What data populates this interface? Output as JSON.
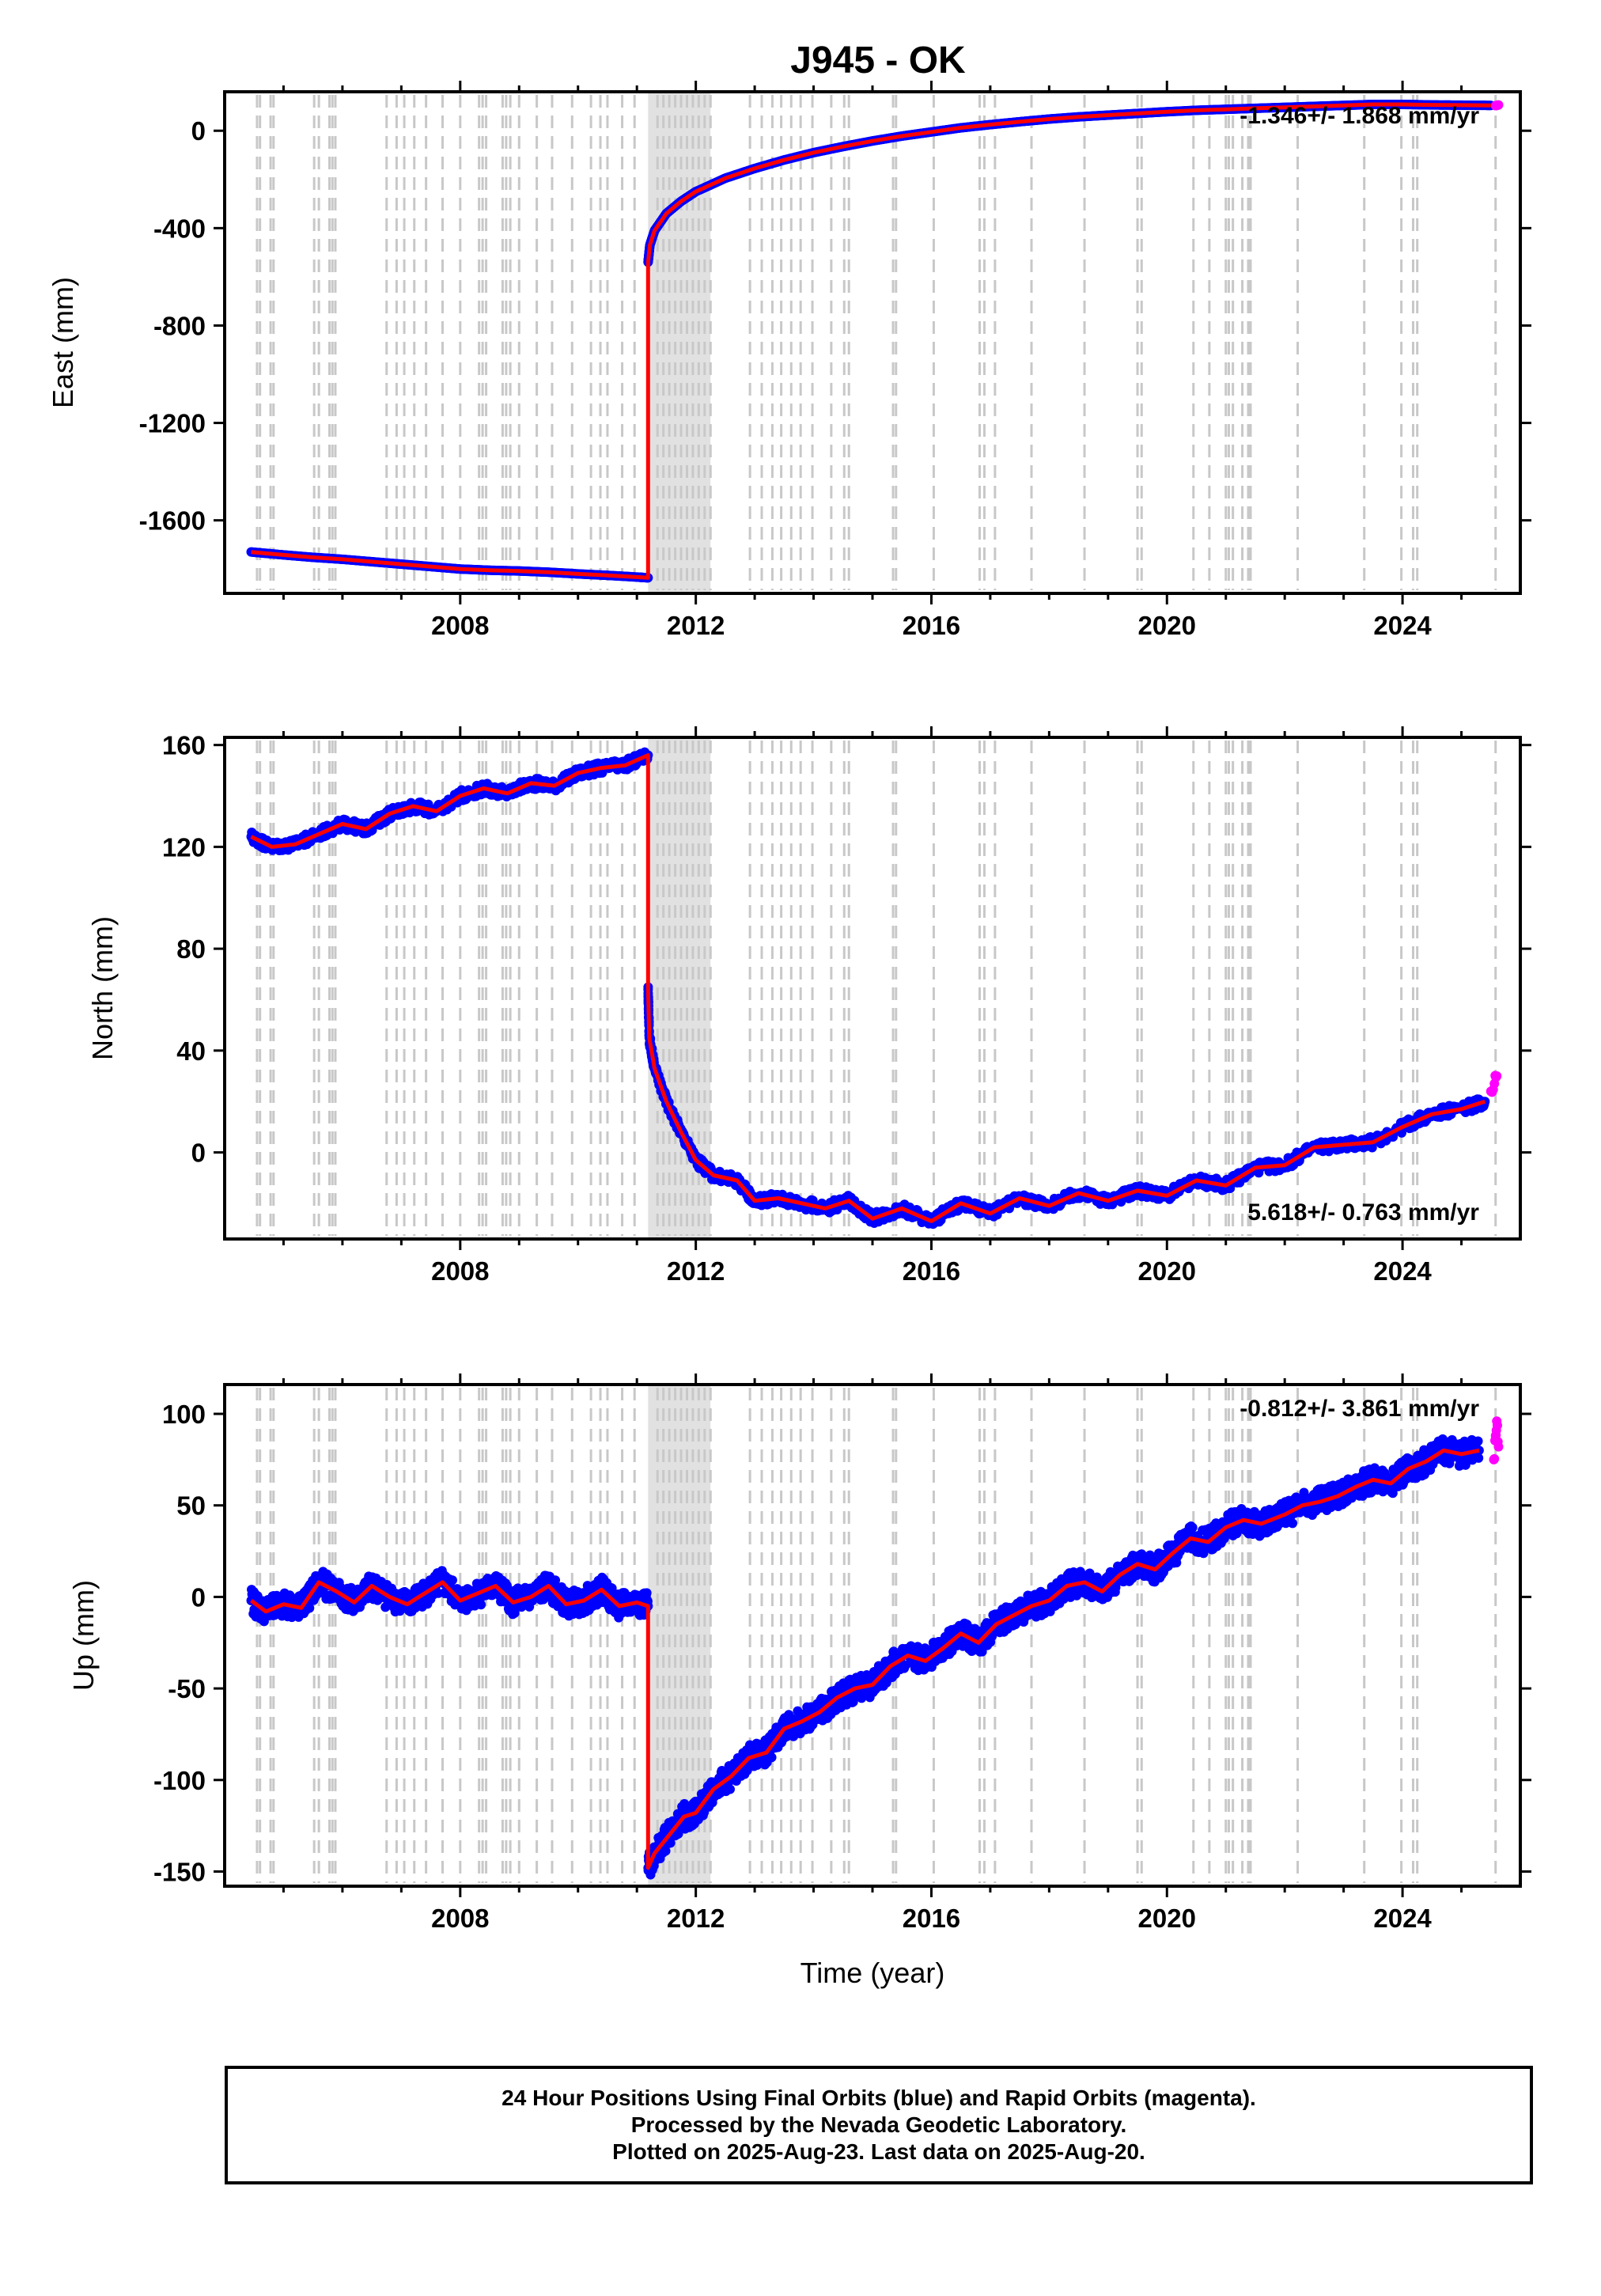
{
  "page": {
    "title": "J945 - OK"
  },
  "footer": {
    "line1": "24 Hour Positions Using Final Orbits (blue) and Rapid Orbits (magenta).",
    "line2": "Processed by the Nevada Geodetic Laboratory.",
    "line3": "Plotted on 2025-Aug-23. Last data on 2025-Aug-20."
  },
  "colors": {
    "final": "#0000ff",
    "rapid": "#ff00ff",
    "model": "#ff0000",
    "steps": "#c8c8c8"
  },
  "chart_data": [
    {
      "type": "scatter",
      "title": "J945 - OK",
      "xlabel": "",
      "ylabel": "East (mm)",
      "xlim": [
        2004.0,
        2026.0
      ],
      "ylim": [
        -1900,
        160
      ],
      "xticks": [
        "2008",
        "2012",
        "2016",
        "2020",
        "2024"
      ],
      "yticks": [
        "0",
        "-400",
        "-800",
        "-1200",
        "-1600"
      ],
      "rate_text": "-1.346+/- 1.868 mm/yr",
      "series": [
        {
          "kind": "final",
          "points": [
            [
              2004.45,
              -1730
            ],
            [
              2005.0,
              -1742
            ],
            [
              2005.5,
              -1752
            ],
            [
              2006.0,
              -1760
            ],
            [
              2006.5,
              -1770
            ],
            [
              2007.0,
              -1780
            ],
            [
              2007.5,
              -1790
            ],
            [
              2008.0,
              -1800
            ],
            [
              2008.5,
              -1805
            ],
            [
              2009.0,
              -1808
            ],
            [
              2009.5,
              -1813
            ],
            [
              2010.0,
              -1820
            ],
            [
              2010.5,
              -1826
            ],
            [
              2011.0,
              -1833
            ],
            [
              2011.19,
              -1836
            ],
            [
              2011.19,
              -540
            ],
            [
              2011.22,
              -470
            ],
            [
              2011.3,
              -410
            ],
            [
              2011.5,
              -340
            ],
            [
              2011.75,
              -290
            ],
            [
              2012.0,
              -250
            ],
            [
              2012.5,
              -195
            ],
            [
              2013.0,
              -155
            ],
            [
              2013.5,
              -120
            ],
            [
              2014.0,
              -90
            ],
            [
              2014.5,
              -65
            ],
            [
              2015.0,
              -42
            ],
            [
              2015.5,
              -22
            ],
            [
              2016.0,
              -5
            ],
            [
              2016.5,
              12
            ],
            [
              2017.0,
              25
            ],
            [
              2017.5,
              37
            ],
            [
              2018.0,
              48
            ],
            [
              2018.5,
              57
            ],
            [
              2019.0,
              64
            ],
            [
              2019.5,
              71
            ],
            [
              2020.0,
              78
            ],
            [
              2020.5,
              84
            ],
            [
              2021.0,
              88
            ],
            [
              2021.5,
              92
            ],
            [
              2022.0,
              96
            ],
            [
              2022.5,
              100
            ],
            [
              2023.0,
              104
            ],
            [
              2023.5,
              108
            ],
            [
              2024.0,
              108
            ],
            [
              2024.5,
              106
            ],
            [
              2025.0,
              105
            ],
            [
              2025.5,
              104
            ]
          ]
        },
        {
          "kind": "rapid",
          "points": [
            [
              2025.58,
              103
            ],
            [
              2025.6,
              104
            ],
            [
              2025.63,
              106
            ]
          ]
        }
      ]
    },
    {
      "type": "scatter",
      "title": "",
      "xlabel": "",
      "ylabel": "North (mm)",
      "xlim": [
        2004.0,
        2026.0
      ],
      "ylim": [
        -34,
        163
      ],
      "xticks": [
        "2008",
        "2012",
        "2016",
        "2020",
        "2024"
      ],
      "yticks": [
        "160",
        "120",
        "80",
        "40",
        "0"
      ],
      "rate_text": "5.618+/- 0.763 mm/yr",
      "series": [
        {
          "kind": "final",
          "points": [
            [
              2004.45,
              124
            ],
            [
              2004.8,
              120
            ],
            [
              2005.2,
              121
            ],
            [
              2005.6,
              125
            ],
            [
              2006.0,
              129
            ],
            [
              2006.4,
              127
            ],
            [
              2006.8,
              133
            ],
            [
              2007.2,
              136
            ],
            [
              2007.6,
              134
            ],
            [
              2008.0,
              140
            ],
            [
              2008.4,
              143
            ],
            [
              2008.8,
              141
            ],
            [
              2009.2,
              145
            ],
            [
              2009.6,
              144
            ],
            [
              2010.0,
              149
            ],
            [
              2010.4,
              151
            ],
            [
              2010.8,
              152
            ],
            [
              2011.19,
              156
            ],
            [
              2011.19,
              64
            ],
            [
              2011.21,
              45
            ],
            [
              2011.3,
              33
            ],
            [
              2011.5,
              20
            ],
            [
              2011.75,
              8
            ],
            [
              2012.0,
              -3
            ],
            [
              2012.3,
              -9
            ],
            [
              2012.7,
              -11
            ],
            [
              2013.0,
              -19
            ],
            [
              2013.4,
              -18
            ],
            [
              2013.8,
              -20
            ],
            [
              2014.2,
              -22
            ],
            [
              2014.6,
              -19
            ],
            [
              2015.0,
              -26
            ],
            [
              2015.5,
              -22
            ],
            [
              2016.0,
              -27
            ],
            [
              2016.5,
              -20
            ],
            [
              2017.0,
              -24
            ],
            [
              2017.5,
              -18
            ],
            [
              2018.0,
              -21
            ],
            [
              2018.5,
              -16
            ],
            [
              2019.0,
              -19
            ],
            [
              2019.5,
              -15
            ],
            [
              2020.0,
              -17
            ],
            [
              2020.5,
              -11
            ],
            [
              2021.0,
              -13
            ],
            [
              2021.5,
              -6
            ],
            [
              2022.0,
              -5
            ],
            [
              2022.5,
              2
            ],
            [
              2023.0,
              3
            ],
            [
              2023.5,
              4
            ],
            [
              2024.0,
              10
            ],
            [
              2024.5,
              15
            ],
            [
              2025.0,
              17
            ],
            [
              2025.4,
              20
            ]
          ]
        },
        {
          "kind": "rapid",
          "points": [
            [
              2025.5,
              24
            ],
            [
              2025.56,
              27
            ],
            [
              2025.6,
              30
            ]
          ]
        }
      ]
    },
    {
      "type": "scatter",
      "title": "",
      "xlabel": "Time (year)",
      "ylabel": "Up (mm)",
      "xlim": [
        2004.0,
        2026.0
      ],
      "ylim": [
        -158,
        116
      ],
      "xticks": [
        "2008",
        "2012",
        "2016",
        "2020",
        "2024"
      ],
      "yticks": [
        "100",
        "50",
        "0",
        "-50",
        "-100",
        "-150"
      ],
      "rate_text": "-0.812+/- 3.861 mm/yr",
      "series": [
        {
          "kind": "final",
          "points": [
            [
              2004.45,
              -2
            ],
            [
              2004.7,
              -8
            ],
            [
              2005.0,
              -4
            ],
            [
              2005.3,
              -6
            ],
            [
              2005.6,
              8
            ],
            [
              2005.9,
              3
            ],
            [
              2006.2,
              -3
            ],
            [
              2006.5,
              6
            ],
            [
              2006.8,
              0
            ],
            [
              2007.1,
              -4
            ],
            [
              2007.4,
              2
            ],
            [
              2007.7,
              8
            ],
            [
              2008.0,
              -2
            ],
            [
              2008.3,
              2
            ],
            [
              2008.6,
              6
            ],
            [
              2008.9,
              -3
            ],
            [
              2009.2,
              0
            ],
            [
              2009.5,
              6
            ],
            [
              2009.8,
              -4
            ],
            [
              2010.1,
              -2
            ],
            [
              2010.4,
              4
            ],
            [
              2010.7,
              -5
            ],
            [
              2011.0,
              -3
            ],
            [
              2011.19,
              -5
            ],
            [
              2011.19,
              -148
            ],
            [
              2011.3,
              -140
            ],
            [
              2011.5,
              -132
            ],
            [
              2011.8,
              -120
            ],
            [
              2012.0,
              -118
            ],
            [
              2012.3,
              -105
            ],
            [
              2012.6,
              -98
            ],
            [
              2012.9,
              -88
            ],
            [
              2013.2,
              -85
            ],
            [
              2013.5,
              -72
            ],
            [
              2013.8,
              -68
            ],
            [
              2014.1,
              -63
            ],
            [
              2014.4,
              -55
            ],
            [
              2014.7,
              -50
            ],
            [
              2015.0,
              -48
            ],
            [
              2015.3,
              -38
            ],
            [
              2015.6,
              -32
            ],
            [
              2015.9,
              -35
            ],
            [
              2016.2,
              -28
            ],
            [
              2016.5,
              -20
            ],
            [
              2016.8,
              -25
            ],
            [
              2017.1,
              -15
            ],
            [
              2017.4,
              -10
            ],
            [
              2017.7,
              -5
            ],
            [
              2018.0,
              -2
            ],
            [
              2018.3,
              6
            ],
            [
              2018.6,
              8
            ],
            [
              2018.9,
              3
            ],
            [
              2019.2,
              12
            ],
            [
              2019.5,
              18
            ],
            [
              2019.8,
              15
            ],
            [
              2020.1,
              24
            ],
            [
              2020.4,
              32
            ],
            [
              2020.7,
              30
            ],
            [
              2021.0,
              38
            ],
            [
              2021.3,
              42
            ],
            [
              2021.6,
              40
            ],
            [
              2022.0,
              45
            ],
            [
              2022.3,
              50
            ],
            [
              2022.6,
              52
            ],
            [
              2022.9,
              55
            ],
            [
              2023.2,
              60
            ],
            [
              2023.5,
              64
            ],
            [
              2023.8,
              62
            ],
            [
              2024.1,
              70
            ],
            [
              2024.4,
              74
            ],
            [
              2024.7,
              80
            ],
            [
              2025.0,
              78
            ],
            [
              2025.3,
              80
            ]
          ]
        },
        {
          "kind": "rapid",
          "points": [
            [
              2025.55,
              75
            ],
            [
              2025.58,
              88
            ],
            [
              2025.6,
              96
            ],
            [
              2025.63,
              82
            ]
          ]
        }
      ]
    }
  ]
}
